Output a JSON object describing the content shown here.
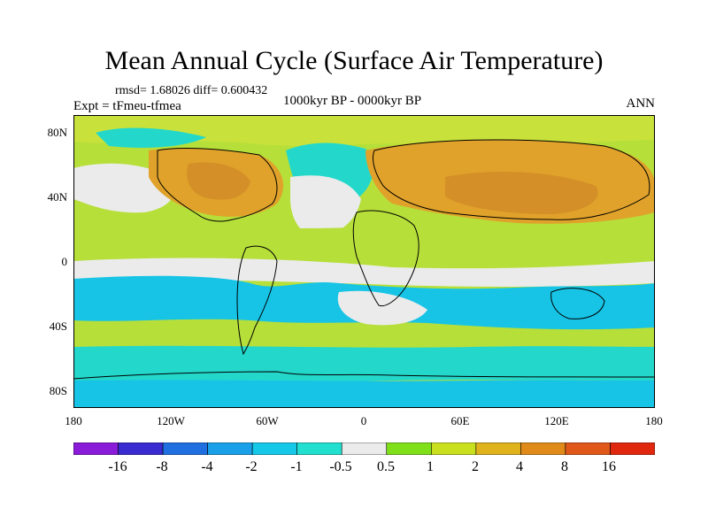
{
  "title": "Mean Annual Cycle (Surface Air Temperature)",
  "stats": "rmsd= 1.68026 diff= 0.600432",
  "subtitle": "1000kyr BP - 0000kyr BP",
  "experiment": "Expt = tFmeu-tfmea",
  "season": "ANN",
  "lat_labels": [
    "80N",
    "40N",
    "0",
    "40S",
    "80S"
  ],
  "lon_labels": [
    "180",
    "120W",
    "60W",
    "0",
    "60E",
    "120E",
    "180"
  ],
  "colorbar": {
    "labels": [
      "-16",
      "-8",
      "-4",
      "-2",
      "-1",
      "-0.5",
      "0.5",
      "1",
      "2",
      "4",
      "8",
      "16"
    ],
    "colors": [
      "#8a1bd8",
      "#3a2bd0",
      "#1f6fe0",
      "#1aa0e8",
      "#16c8e8",
      "#22e0cf",
      "#ebebeb",
      "#7fe01a",
      "#c8e01e",
      "#e0b31c",
      "#e08a1a",
      "#e0581a",
      "#e0280e"
    ]
  },
  "colors": {
    "bg_green": "#b6df3a",
    "light_green": "#c9e23b",
    "orange": "#e0a22a",
    "dark_orange": "#d48f28",
    "teal": "#23d8cb",
    "cyan": "#17c4e6",
    "grey": "#ebebeb",
    "coast": "#000000"
  }
}
